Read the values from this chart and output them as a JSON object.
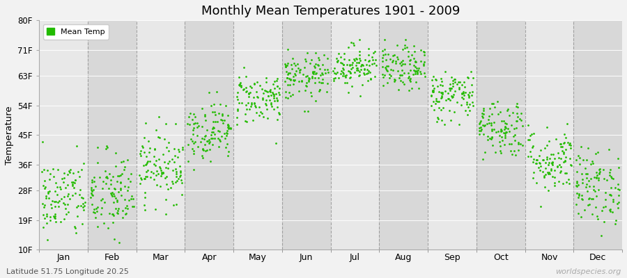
{
  "title": "Monthly Mean Temperatures 1901 - 2009",
  "ylabel": "Temperature",
  "subtitle": "Latitude 51.75 Longitude 20.25",
  "watermark": "worldspecies.org",
  "dot_color": "#22bb00",
  "bg_color": "#f2f2f2",
  "plot_bg_odd": "#e8e8e8",
  "plot_bg_even": "#d8d8d8",
  "legend_label": "Mean Temp",
  "ytick_labels": [
    "10F",
    "19F",
    "28F",
    "36F",
    "45F",
    "54F",
    "63F",
    "71F",
    "80F"
  ],
  "ytick_values": [
    10,
    19,
    28,
    36,
    45,
    54,
    63,
    71,
    80
  ],
  "months": [
    "Jan",
    "Feb",
    "Mar",
    "Apr",
    "May",
    "Jun",
    "Jul",
    "Aug",
    "Sep",
    "Oct",
    "Nov",
    "Dec"
  ],
  "monthly_means_C": [
    -3.5,
    -3.0,
    2.0,
    8.0,
    13.5,
    17.0,
    19.0,
    18.5,
    14.0,
    8.5,
    3.0,
    -1.5
  ],
  "monthly_stds_C": [
    3.5,
    3.8,
    3.0,
    2.5,
    2.2,
    2.0,
    1.8,
    1.9,
    2.2,
    2.5,
    2.8,
    3.2
  ],
  "n_years": 109,
  "seed": 42
}
